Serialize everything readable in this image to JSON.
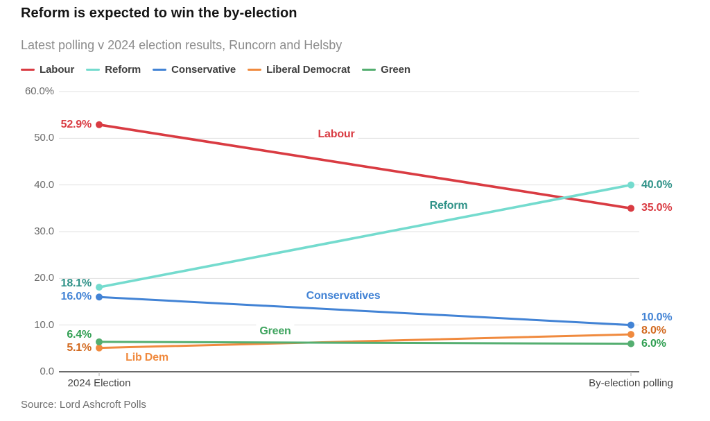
{
  "header": {
    "title": "Reform is expected to win the by-election",
    "subtitle": "Latest polling v 2024 election results, Runcorn and Helsby"
  },
  "footer": {
    "source": "Source: Lord Ashcroft Polls"
  },
  "chart_data": {
    "type": "line",
    "title": "Reform is expected to win the by-election",
    "subtitle": "Latest polling v 2024 election results, Runcorn and Helsby",
    "source": "Source: Lord Ashcroft Polls",
    "x_categories": [
      "2024 Election",
      "By-election polling"
    ],
    "ylim": [
      0,
      60
    ],
    "grid": "horizontal",
    "legend_position": "top",
    "y_ticks": [
      {
        "value": 60,
        "label": "60.0%"
      },
      {
        "value": 50,
        "label": "50.0"
      },
      {
        "value": 40,
        "label": "40.0"
      },
      {
        "value": 30,
        "label": "30.0"
      },
      {
        "value": 20,
        "label": "20.0"
      },
      {
        "value": 10,
        "label": "10.0"
      },
      {
        "value": 0,
        "label": "0.0"
      }
    ],
    "series": [
      {
        "name": "Labour",
        "values": [
          52.9,
          35.0
        ],
        "point_labels": [
          "52.9%",
          "35.0%"
        ],
        "inline_label": "Labour",
        "color": "#d93b42",
        "value_label_color": "#d93b42",
        "inline_label_color": "#d93b42"
      },
      {
        "name": "Reform",
        "values": [
          18.1,
          40.0
        ],
        "point_labels": [
          "18.1%",
          "40.0%"
        ],
        "inline_label": "Reform",
        "color": "#74dbce",
        "value_label_color": "#2f9288",
        "inline_label_color": "#2f9288"
      },
      {
        "name": "Conservative",
        "values": [
          16.0,
          10.0
        ],
        "point_labels": [
          "16.0%",
          "10.0%"
        ],
        "inline_label": "Conservatives",
        "color": "#4283d5",
        "value_label_color": "#4283d5",
        "inline_label_color": "#4283d5"
      },
      {
        "name": "Liberal Democrat",
        "values": [
          5.1,
          8.0
        ],
        "point_labels": [
          "5.1%",
          "8.0%"
        ],
        "inline_label": "Lib Dem",
        "color": "#f08a3e",
        "value_label_color": "#d2691f",
        "inline_label_color": "#f08a3e"
      },
      {
        "name": "Green",
        "values": [
          6.4,
          6.0
        ],
        "point_labels": [
          "6.4%",
          "6.0%"
        ],
        "inline_label": "Green",
        "color": "#54ae70",
        "value_label_color": "#2f9e51",
        "inline_label_color": "#3fa45f"
      }
    ]
  }
}
